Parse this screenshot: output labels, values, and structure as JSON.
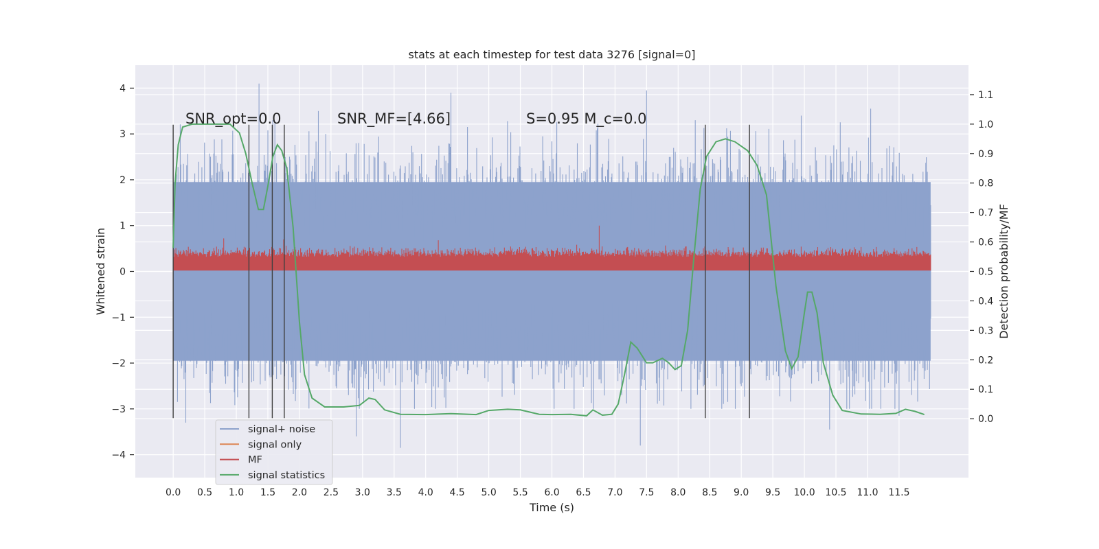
{
  "chart_data": {
    "type": "line",
    "title": "stats at each timestep for test data 3276 [signal=0]",
    "xlabel": "Time (s)",
    "ylabel": "Whitened strain",
    "y2label": "Detection probability/MF",
    "xlim": [
      -0.6,
      12.6
    ],
    "ylim": [
      -4.5,
      4.5
    ],
    "y2lim": [
      -0.2,
      1.2
    ],
    "xticks": [
      0.0,
      0.5,
      1.0,
      1.5,
      2.0,
      2.5,
      3.0,
      3.5,
      4.0,
      4.5,
      5.0,
      5.5,
      6.0,
      6.5,
      7.0,
      7.5,
      8.0,
      8.5,
      9.0,
      9.5,
      10.0,
      10.5,
      11.0,
      11.5
    ],
    "xtick_labels": [
      "0.0",
      "0.5",
      "1.0",
      "1.5",
      "2.0",
      "2.5",
      "3.0",
      "3.5",
      "4.0",
      "4.5",
      "5.0",
      "5.5",
      "6.0",
      "6.5",
      "7.0",
      "7.5",
      "8.0",
      "8.5",
      "9.0",
      "9.5",
      "10.0",
      "10.5",
      "11.0",
      "11.5"
    ],
    "yticks": [
      4,
      3,
      2,
      1,
      0,
      -1,
      -2,
      -3,
      -4
    ],
    "ytick_labels": [
      "4",
      "3",
      "2",
      "1",
      "0",
      "−1",
      "−2",
      "−3",
      "−4"
    ],
    "y2ticks": [
      1.1,
      1.0,
      0.9,
      0.8,
      0.7,
      0.6,
      0.5,
      0.4,
      0.3,
      0.2,
      0.1,
      0.0
    ],
    "y2tick_labels": [
      "1.1",
      "1.0",
      "0.9",
      "0.8",
      "0.7",
      "0.6",
      "0.5",
      "0.4",
      "0.3",
      "0.2",
      "0.1",
      "0.0"
    ],
    "grid": true,
    "legend_position": "bottom-left",
    "annotations": {
      "snr_opt": "SNR_opt=0.0",
      "snr_mf": "SNR_MF=[4.66]",
      "s_mc": "S=0.95   M_c=0.0"
    },
    "colors": {
      "signal_noise": "#8da2cc",
      "signal_only": "#dd8452",
      "mf": "#c44e52",
      "signal_statistics": "#55a868",
      "background": "#eaeaf2",
      "marker_lines": "#404040"
    },
    "series": [
      {
        "name": "signal+ noise",
        "style": "dense noise band",
        "x_range": [
          0.0,
          12.0
        ],
        "typical_range": [
          -2.0,
          2.0
        ],
        "peaks": [
          {
            "x": 1.36,
            "y": 4.1
          },
          {
            "x": 4.4,
            "y": 3.9
          },
          {
            "x": 7.5,
            "y": 3.95
          },
          {
            "x": 11.05,
            "y": 3.55
          },
          {
            "x": 2.3,
            "y": 3.5
          },
          {
            "x": 9.95,
            "y": 3.4
          },
          {
            "x": 0.2,
            "y": -3.3
          },
          {
            "x": 3.6,
            "y": -3.85
          },
          {
            "x": 2.9,
            "y": -3.6
          },
          {
            "x": 7.4,
            "y": -3.8
          },
          {
            "x": 10.4,
            "y": -3.45
          },
          {
            "x": 11.5,
            "y": -3.15
          }
        ]
      },
      {
        "name": "signal only",
        "values": []
      },
      {
        "name": "MF",
        "style": "dense band",
        "x_range": [
          0.0,
          12.0
        ],
        "typical_range": [
          0.0,
          0.6
        ],
        "peaks": [
          {
            "x": 6.75,
            "y": 1.0
          },
          {
            "x": 0.8,
            "y": 0.72
          },
          {
            "x": 1.75,
            "y": 0.7
          },
          {
            "x": 4.2,
            "y": 0.68
          }
        ]
      },
      {
        "name": "signal statistics",
        "axis": "right",
        "points": [
          [
            0.0,
            0.58
          ],
          [
            0.03,
            0.8
          ],
          [
            0.08,
            0.93
          ],
          [
            0.15,
            0.99
          ],
          [
            0.3,
            1.0
          ],
          [
            0.6,
            1.0
          ],
          [
            0.9,
            1.0
          ],
          [
            1.05,
            0.97
          ],
          [
            1.15,
            0.9
          ],
          [
            1.25,
            0.8
          ],
          [
            1.35,
            0.71
          ],
          [
            1.43,
            0.71
          ],
          [
            1.5,
            0.79
          ],
          [
            1.58,
            0.89
          ],
          [
            1.65,
            0.93
          ],
          [
            1.72,
            0.91
          ],
          [
            1.8,
            0.85
          ],
          [
            1.9,
            0.65
          ],
          [
            2.0,
            0.33
          ],
          [
            2.08,
            0.15
          ],
          [
            2.2,
            0.07
          ],
          [
            2.4,
            0.04
          ],
          [
            2.7,
            0.04
          ],
          [
            2.95,
            0.045
          ],
          [
            3.1,
            0.07
          ],
          [
            3.2,
            0.065
          ],
          [
            3.35,
            0.03
          ],
          [
            3.6,
            0.015
          ],
          [
            4.0,
            0.014
          ],
          [
            4.4,
            0.017
          ],
          [
            4.8,
            0.014
          ],
          [
            5.0,
            0.028
          ],
          [
            5.3,
            0.032
          ],
          [
            5.5,
            0.03
          ],
          [
            5.8,
            0.015
          ],
          [
            6.0,
            0.014
          ],
          [
            6.3,
            0.015
          ],
          [
            6.55,
            0.01
          ],
          [
            6.65,
            0.03
          ],
          [
            6.8,
            0.012
          ],
          [
            6.95,
            0.015
          ],
          [
            7.05,
            0.05
          ],
          [
            7.15,
            0.15
          ],
          [
            7.25,
            0.26
          ],
          [
            7.35,
            0.24
          ],
          [
            7.5,
            0.19
          ],
          [
            7.6,
            0.19
          ],
          [
            7.75,
            0.205
          ],
          [
            7.85,
            0.19
          ],
          [
            7.95,
            0.167
          ],
          [
            8.05,
            0.18
          ],
          [
            8.15,
            0.3
          ],
          [
            8.25,
            0.55
          ],
          [
            8.35,
            0.78
          ],
          [
            8.45,
            0.89
          ],
          [
            8.6,
            0.94
          ],
          [
            8.75,
            0.95
          ],
          [
            8.9,
            0.94
          ],
          [
            9.1,
            0.91
          ],
          [
            9.25,
            0.86
          ],
          [
            9.4,
            0.76
          ],
          [
            9.55,
            0.45
          ],
          [
            9.7,
            0.23
          ],
          [
            9.8,
            0.17
          ],
          [
            9.9,
            0.21
          ],
          [
            10.0,
            0.36
          ],
          [
            10.05,
            0.43
          ],
          [
            10.12,
            0.43
          ],
          [
            10.2,
            0.36
          ],
          [
            10.3,
            0.19
          ],
          [
            10.45,
            0.08
          ],
          [
            10.6,
            0.028
          ],
          [
            10.9,
            0.016
          ],
          [
            11.2,
            0.015
          ],
          [
            11.45,
            0.018
          ],
          [
            11.6,
            0.032
          ],
          [
            11.75,
            0.025
          ],
          [
            11.9,
            0.014
          ]
        ]
      }
    ],
    "vertical_markers": [
      {
        "x": 0.0,
        "ymin": -3.2,
        "ymax": 3.2
      },
      {
        "x": 1.2,
        "ymin": -3.2,
        "ymax": 3.2
      },
      {
        "x": 1.57,
        "ymin": -3.2,
        "ymax": 3.2
      },
      {
        "x": 1.76,
        "ymin": -3.2,
        "ymax": 3.2
      },
      {
        "x": 8.43,
        "ymin": -3.2,
        "ymax": 3.2
      },
      {
        "x": 9.13,
        "ymin": -3.2,
        "ymax": 3.2
      }
    ]
  }
}
